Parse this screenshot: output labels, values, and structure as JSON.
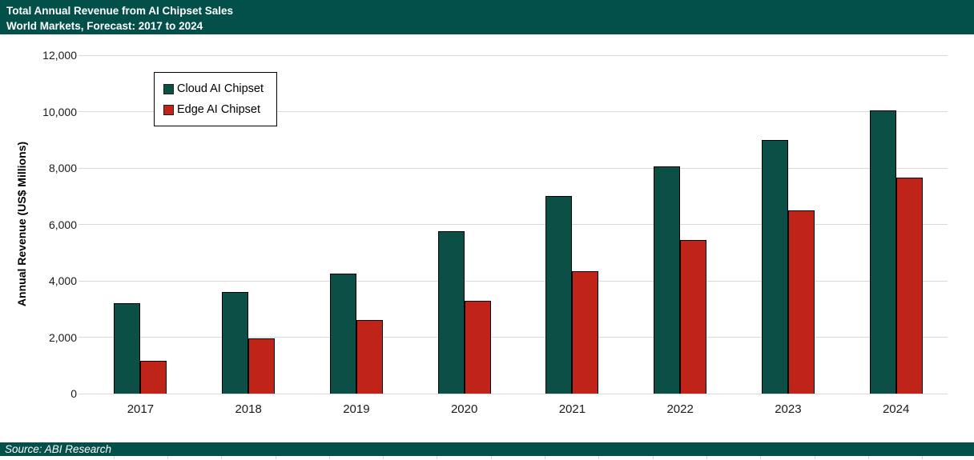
{
  "header": {
    "title_line1": "Total Annual Revenue from AI Chipset Sales",
    "title_line2": "World Markets, Forecast: 2017 to 2024"
  },
  "footer": {
    "source": "Source: ABI Research"
  },
  "chart_data": {
    "type": "bar",
    "title": "Total Annual Revenue from AI Chipset Sales",
    "subtitle": "World Markets, Forecast: 2017 to 2024",
    "categories": [
      "2017",
      "2018",
      "2019",
      "2020",
      "2021",
      "2022",
      "2023",
      "2024"
    ],
    "series": [
      {
        "name": "Cloud AI Chipset",
        "color": "#0b4f47",
        "values": [
          3200,
          3600,
          4250,
          5750,
          7000,
          8050,
          9000,
          10050
        ]
      },
      {
        "name": "Edge AI Chipset",
        "color": "#c02419",
        "values": [
          1150,
          1950,
          2600,
          3300,
          4350,
          5450,
          6500,
          7650
        ]
      }
    ],
    "xlabel": "",
    "ylabel": "Annual Revenue (US$ Millions)",
    "ylim": [
      0,
      12000
    ],
    "ytick_step": 2000,
    "ytick_labels": [
      "0",
      "2,000",
      "4,000",
      "6,000",
      "8,000",
      "10,000",
      "12,000"
    ],
    "grid": true,
    "legend_position": "upper-left-inside"
  },
  "colors": {
    "banner": "#03504a",
    "cloud_series": "#0b4f47",
    "edge_series": "#c02419",
    "gridline": "#d9d9d9"
  }
}
